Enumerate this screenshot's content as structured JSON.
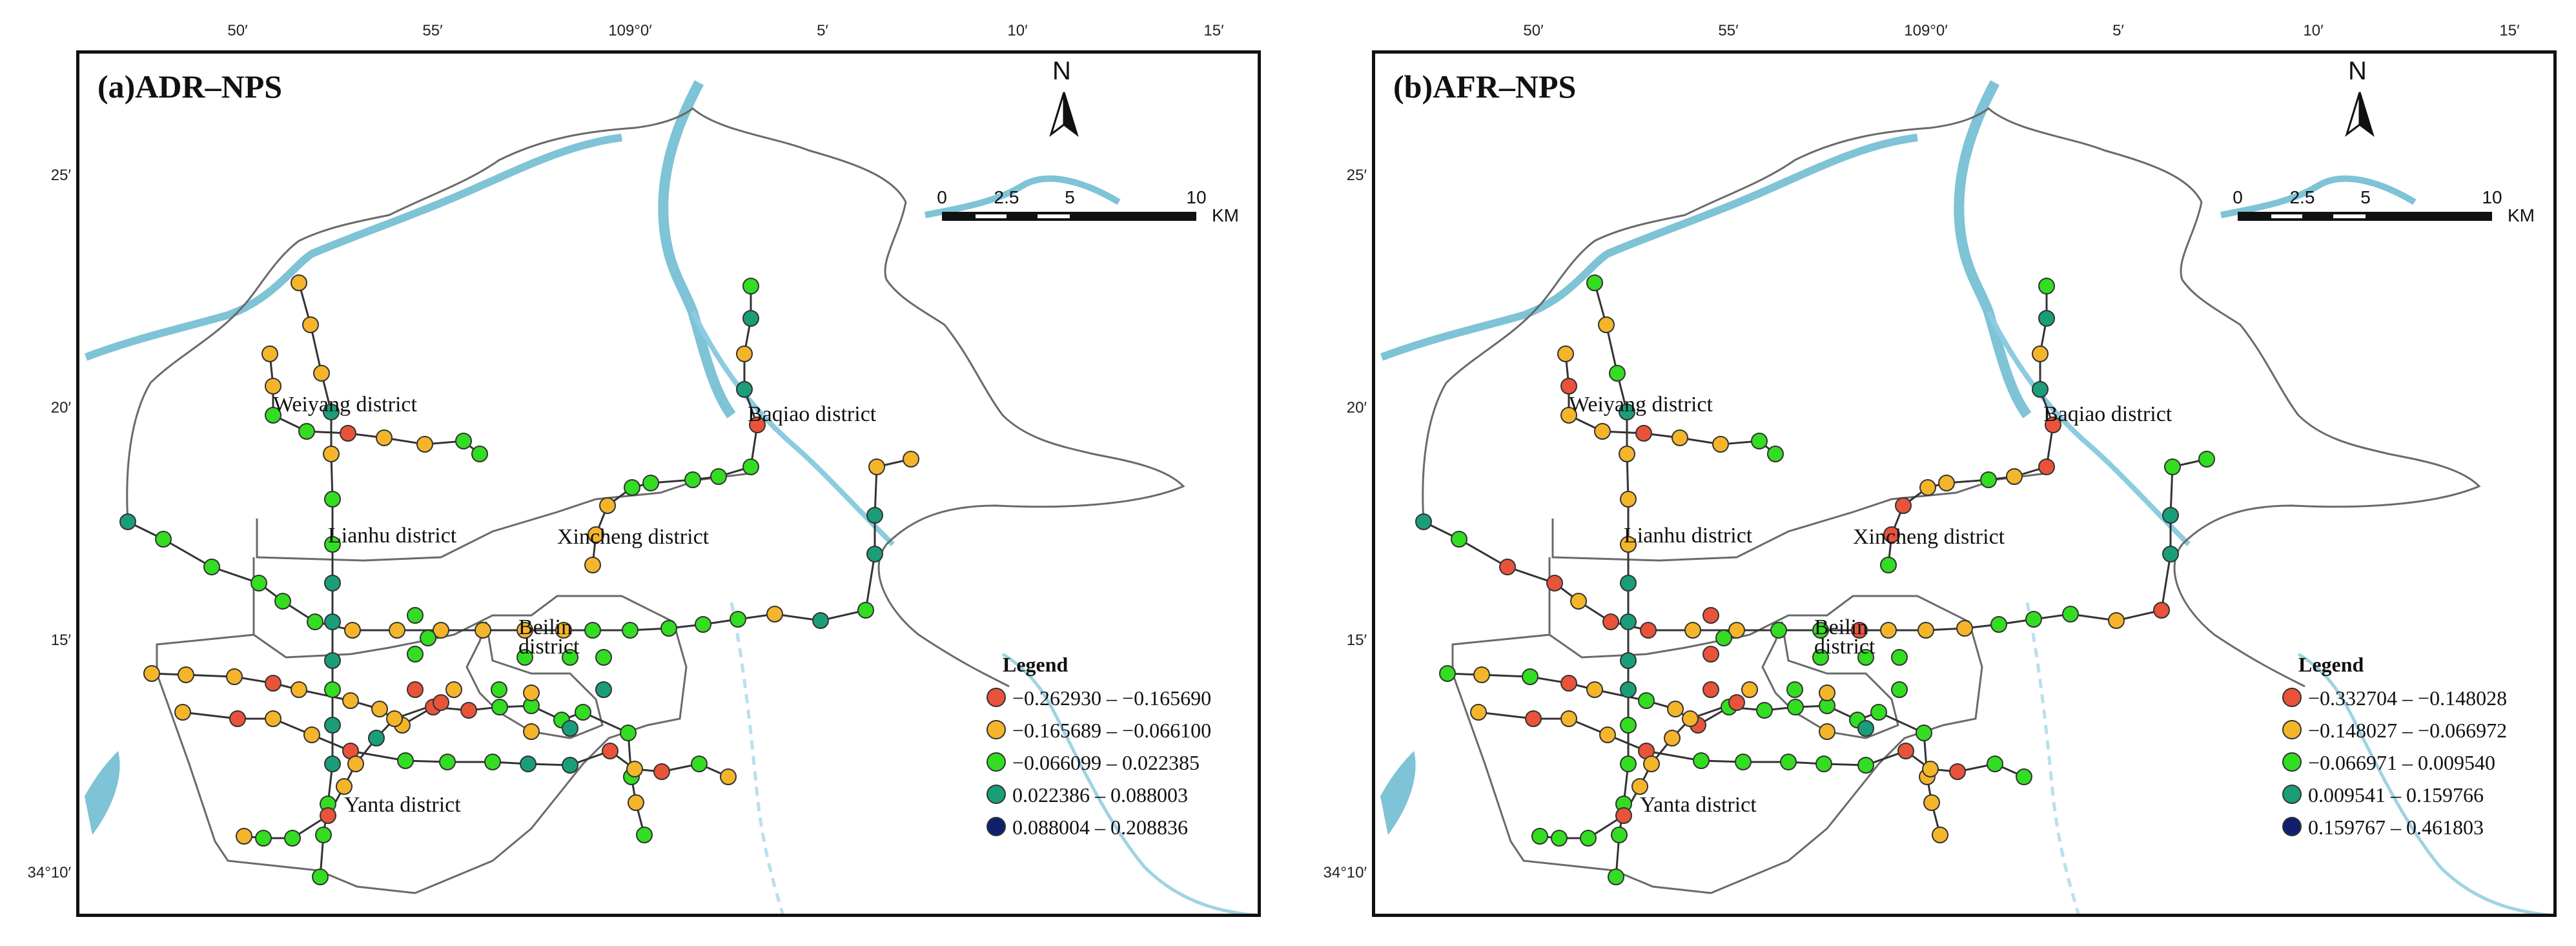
{
  "ticks": {
    "top": [
      "50′",
      "55′",
      "109°0′",
      "5′",
      "10′",
      "15′"
    ],
    "left": [
      "25′",
      "20′",
      "15′",
      "34°10′"
    ]
  },
  "districts": {
    "weiyang": "Weiyang district",
    "baqiao": "Baqiao district",
    "lianhu": "Lianhu district",
    "xincheng": "Xincheng district",
    "beilin1": "Beilin",
    "beilin2": "district",
    "yanta": "Yanta district"
  },
  "north_label": "N",
  "scale": {
    "labels": [
      "0",
      "2.5",
      "5",
      "10"
    ],
    "unit": "KM"
  },
  "legend_title": "Legend",
  "colors": [
    "#e8533a",
    "#f5b52a",
    "#33dd22",
    "#1a9e7a",
    "#10206e"
  ],
  "panels": [
    {
      "title": "(a)ADR–NPS",
      "legend": [
        "−0.262930 – −0.165690",
        "−0.165689 – −0.066100",
        "−0.066099 – 0.022385",
        "0.022386 – 0.088003",
        "0.088004 – 0.208836"
      ]
    },
    {
      "title": "(b)AFR–NPS",
      "legend": [
        "−0.332704 – −0.148028",
        "−0.148027 – −0.066972",
        "−0.066971 – 0.009540",
        "0.009541 – 0.159766",
        "0.159767 – 0.461803"
      ]
    }
  ],
  "station_classes": [
    [
      "d",
      "c",
      "c",
      "c",
      "c",
      "c",
      "b",
      "b",
      "b",
      "b",
      "b",
      "b",
      "c",
      "c",
      "c",
      "c",
      "c",
      "b",
      "d",
      "c",
      "d",
      "d",
      "b",
      "b",
      "b",
      "b",
      "b",
      "d",
      "b",
      "c",
      "c",
      "d",
      "d",
      "d",
      "c",
      "d",
      "d",
      "c",
      "c",
      "c",
      "b",
      "b",
      "c",
      "c",
      "a",
      "b",
      "b",
      "c",
      "c",
      "c",
      "d",
      "b",
      "d",
      "a",
      "c",
      "c",
      "c",
      "c",
      "c",
      "b",
      "b",
      "b",
      "b",
      "b",
      "b",
      "a",
      "b",
      "b",
      "b",
      "b",
      "a",
      "a",
      "c",
      "c",
      "c",
      "c",
      "c",
      "c",
      "b",
      "c",
      "b",
      "a",
      "b",
      "b",
      "a",
      "c",
      "c",
      "c",
      "d",
      "d",
      "a",
      "b",
      "a",
      "c",
      "b",
      "b",
      "c",
      "c",
      "a",
      "b",
      "b",
      "d",
      "b",
      "a",
      "c",
      "c",
      "a",
      "b",
      "c",
      "b",
      "c",
      "c",
      "c",
      "c",
      "d",
      "d",
      "b",
      "c",
      "d",
      "d",
      "d",
      "d",
      "b"
    ],
    [
      "d",
      "c",
      "a",
      "a",
      "b",
      "a",
      "a",
      "b",
      "b",
      "c",
      "c",
      "a",
      "b",
      "b",
      "b",
      "c",
      "c",
      "c",
      "b",
      "a",
      "d",
      "d",
      "c",
      "c",
      "c",
      "b",
      "c",
      "d",
      "b",
      "b",
      "b",
      "d",
      "d",
      "d",
      "d",
      "c",
      "c",
      "c",
      "c",
      "c",
      "b",
      "a",
      "b",
      "b",
      "a",
      "b",
      "b",
      "c",
      "c",
      "c",
      "d",
      "b",
      "d",
      "a",
      "a",
      "b",
      "c",
      "b",
      "b",
      "a",
      "a",
      "c",
      "c",
      "b",
      "c",
      "a",
      "b",
      "c",
      "b",
      "a",
      "c",
      "c",
      "c",
      "c",
      "c",
      "c",
      "c",
      "b",
      "b",
      "b",
      "b",
      "a",
      "b",
      "b",
      "a",
      "c",
      "c",
      "c",
      "c",
      "c",
      "a",
      "b",
      "a",
      "c",
      "c",
      "c",
      "c",
      "c",
      "a",
      "b",
      "b",
      "b",
      "b",
      "a",
      "a",
      "a",
      "a",
      "b",
      "c",
      "b",
      "c",
      "c",
      "c",
      "c",
      "c",
      "d",
      "b",
      "d",
      "d",
      "d",
      "d",
      "d",
      "c"
    ]
  ]
}
